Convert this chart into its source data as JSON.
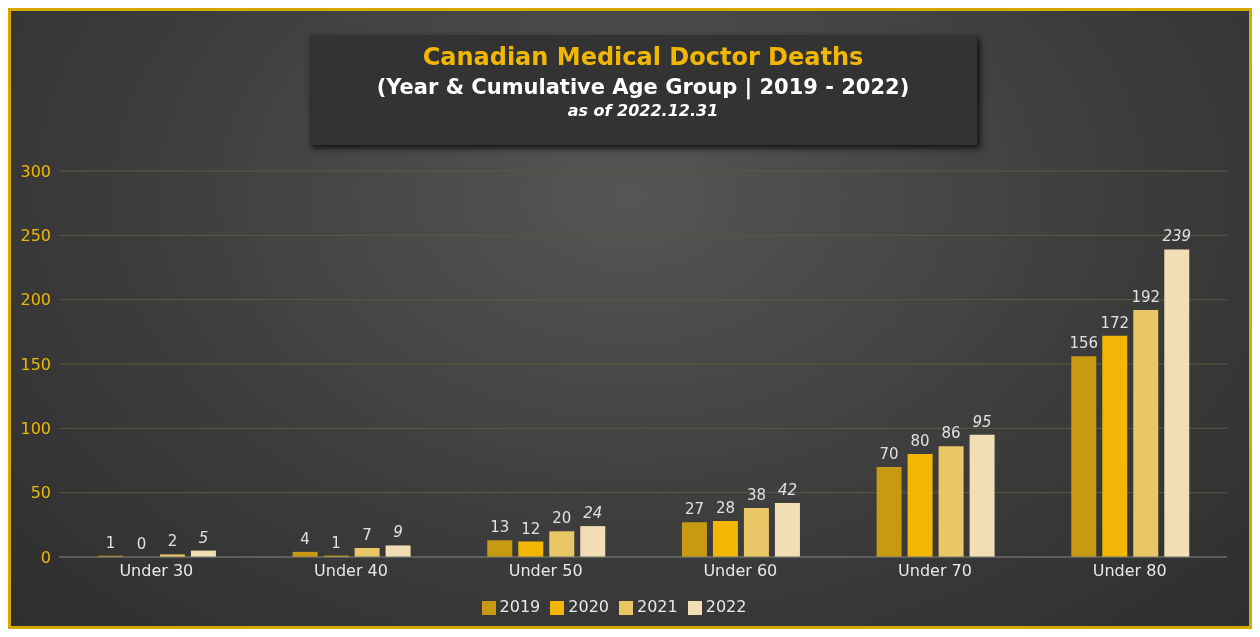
{
  "chart_data": {
    "type": "bar",
    "title": "Canadian Medical Doctor Deaths",
    "subtitle": "(Year & Cumulative Age Group | 2019 - 2022)",
    "annotations": [
      "as of 2022.12.31"
    ],
    "categories": [
      "Under 30",
      "Under 40",
      "Under 50",
      "Under 60",
      "Under 70",
      "Under 80"
    ],
    "series": [
      {
        "name": "2019",
        "color": "#c89a12",
        "values": [
          1,
          4,
          13,
          27,
          70,
          156
        ]
      },
      {
        "name": "2020",
        "color": "#f2b705",
        "values": [
          0,
          1,
          12,
          28,
          80,
          172
        ]
      },
      {
        "name": "2021",
        "color": "#e9c766",
        "values": [
          2,
          7,
          20,
          38,
          86,
          192
        ]
      },
      {
        "name": "2022",
        "color": "#f1deb4",
        "values": [
          5,
          9,
          24,
          42,
          95,
          239
        ]
      }
    ],
    "ylim": [
      0,
      300
    ],
    "yticks": [
      0,
      50,
      100,
      150,
      200,
      250,
      300
    ],
    "grid": "y",
    "legend": "bottom",
    "data_labels": true
  }
}
